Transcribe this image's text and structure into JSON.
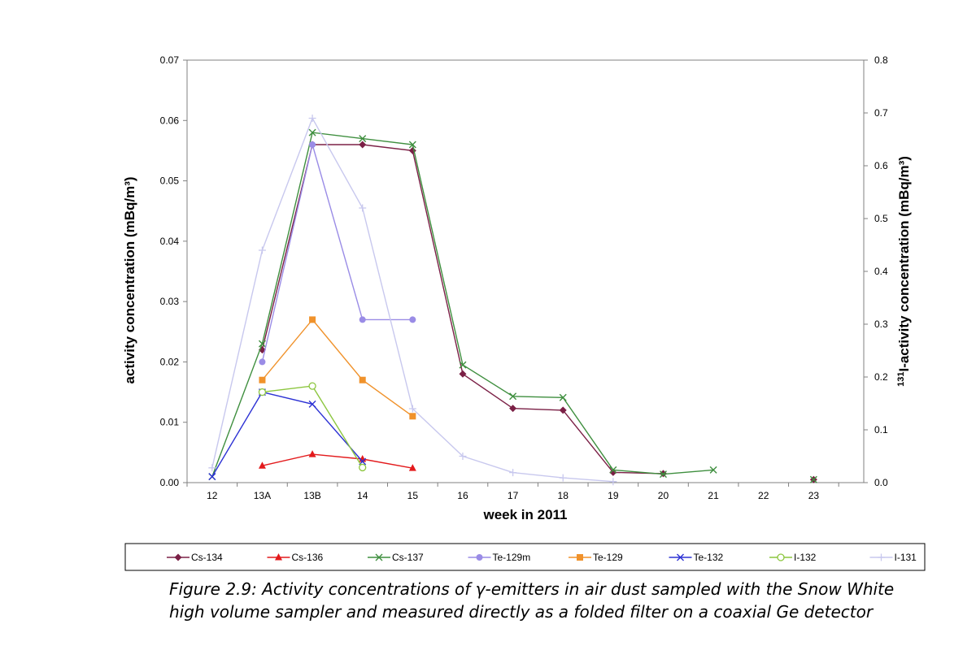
{
  "caption": "Figure 2.9: Activity concentrations of γ-emitters in air dust sampled with the Snow White high volume sampler and measured directly as a folded filter on a coaxial Ge detector",
  "chart_data": {
    "type": "line",
    "title": "",
    "xlabel": "week in 2011",
    "ylabel": "activity concentration (mBq/m³)",
    "y2label_sup": "131",
    "y2label": "I-activity concentration (mBq/m³)",
    "categories": [
      "12",
      "13A",
      "13B",
      "14",
      "15",
      "16",
      "17",
      "18",
      "19",
      "20",
      "21",
      "22",
      "23"
    ],
    "ylim": [
      0,
      0.07
    ],
    "y_ticks": [
      "0.00",
      "0.01",
      "0.02",
      "0.03",
      "0.04",
      "0.05",
      "0.06",
      "0.07"
    ],
    "y2lim": [
      0,
      0.8
    ],
    "y2_ticks": [
      "0.0",
      "0.1",
      "0.2",
      "0.3",
      "0.4",
      "0.5",
      "0.6",
      "0.7",
      "0.8"
    ],
    "grid": false,
    "legend_position": "bottom",
    "series": [
      {
        "name": "Cs-134",
        "color": "#7B2046",
        "marker": "diamond",
        "axis": "left",
        "values": [
          null,
          0.022,
          0.056,
          0.056,
          0.055,
          0.018,
          0.0123,
          0.012,
          0.0017,
          0.0015,
          null,
          null,
          0.0005
        ]
      },
      {
        "name": "Cs-136",
        "color": "#E31A1C",
        "marker": "triangle",
        "axis": "left",
        "values": [
          null,
          0.0028,
          0.0047,
          0.0039,
          0.0024,
          null,
          null,
          null,
          null,
          null,
          null,
          null,
          null
        ]
      },
      {
        "name": "Cs-137",
        "color": "#3F8F3F",
        "marker": "x",
        "axis": "left",
        "values": [
          0.001,
          0.023,
          0.058,
          0.057,
          0.056,
          0.0195,
          0.0143,
          0.0141,
          0.0021,
          0.0014,
          0.0021,
          null,
          0.0005
        ]
      },
      {
        "name": "Te-129m",
        "color": "#9A8CE6",
        "marker": "circle",
        "axis": "left",
        "values": [
          null,
          0.02,
          0.056,
          0.027,
          0.027,
          null,
          null,
          null,
          null,
          null,
          null,
          null,
          null
        ]
      },
      {
        "name": "Te-129",
        "color": "#F0922B",
        "marker": "square",
        "axis": "left",
        "values": [
          null,
          0.017,
          0.027,
          0.017,
          0.011,
          null,
          null,
          null,
          null,
          null,
          null,
          null,
          null
        ]
      },
      {
        "name": "Te-132",
        "color": "#2D32D4",
        "marker": "x",
        "axis": "left",
        "values": [
          0.001,
          0.015,
          0.013,
          0.0035,
          null,
          null,
          null,
          null,
          null,
          null,
          null,
          null,
          null
        ]
      },
      {
        "name": "I-132",
        "color": "#8CC63F",
        "marker": "open-circle",
        "axis": "left",
        "values": [
          null,
          0.015,
          0.016,
          0.0025,
          null,
          null,
          null,
          null,
          null,
          null,
          null,
          null,
          null
        ]
      },
      {
        "name": "I-131",
        "color": "#C8C8EE",
        "marker": "plus",
        "axis": "right",
        "values": [
          0.028,
          0.44,
          0.69,
          0.52,
          0.14,
          0.05,
          0.019,
          0.009,
          0.002,
          null,
          null,
          null,
          null
        ]
      }
    ]
  }
}
